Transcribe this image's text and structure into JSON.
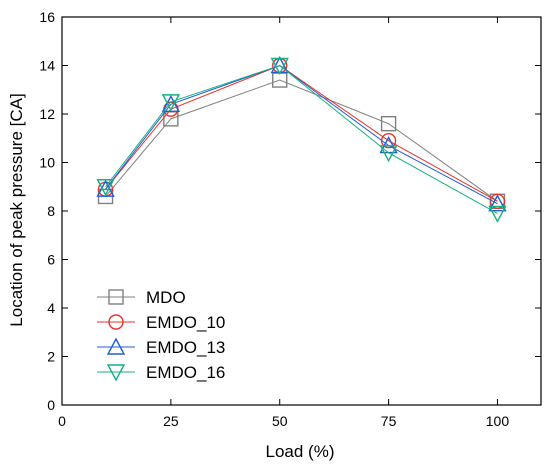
{
  "chart_data": {
    "type": "line",
    "xlabel": "Load (%)",
    "ylabel": "Location of peak pressure [CA]",
    "xlim": [
      0,
      110
    ],
    "ylim": [
      0,
      16
    ],
    "xticks": [
      0,
      25,
      50,
      75,
      100
    ],
    "yticks": [
      0,
      2,
      4,
      6,
      8,
      10,
      12,
      14,
      16
    ],
    "x": [
      10,
      25,
      50,
      75,
      100
    ],
    "grid": false,
    "legend_position": "bottom-left",
    "series": [
      {
        "name": "MDO",
        "values": [
          8.6,
          11.8,
          13.4,
          11.6,
          8.4
        ],
        "color": "#808080",
        "marker": "square"
      },
      {
        "name": "EMDO_10",
        "values": [
          8.9,
          12.2,
          14.0,
          10.9,
          8.4
        ],
        "color": "#e8322a",
        "marker": "circle"
      },
      {
        "name": "EMDO_13",
        "values": [
          8.9,
          12.4,
          14.0,
          10.7,
          8.3
        ],
        "color": "#1f5fd6",
        "marker": "triangle-up"
      },
      {
        "name": "EMDO_16",
        "values": [
          9.0,
          12.5,
          14.0,
          10.4,
          7.9
        ],
        "color": "#17b082",
        "marker": "triangle-down"
      }
    ]
  }
}
